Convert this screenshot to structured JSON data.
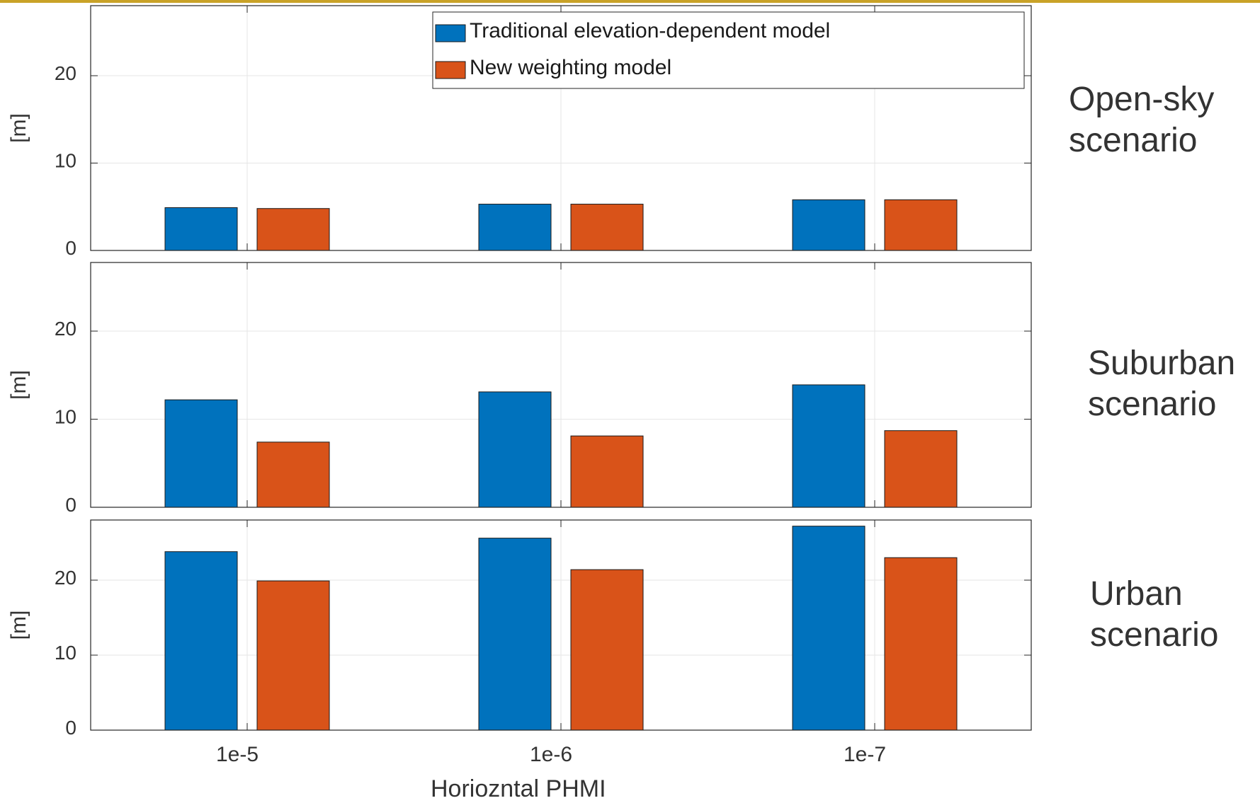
{
  "chart_data": [
    {
      "type": "bar",
      "panel": "open-sky",
      "scenario_label": [
        "Open-sky",
        "scenario"
      ],
      "categories": [
        "1e-5",
        "1e-6",
        "1e-7"
      ],
      "series": [
        {
          "name": "Traditional elevation-dependent model",
          "values": [
            4.9,
            5.3,
            5.8
          ],
          "color": "#0072bd"
        },
        {
          "name": "New weighting model",
          "values": [
            4.8,
            5.3,
            5.8
          ],
          "color": "#d95319"
        }
      ],
      "ylabel": "[m]",
      "yticks": [
        0,
        10,
        20
      ],
      "ylim": [
        0,
        28
      ],
      "grid": true,
      "legend": "top"
    },
    {
      "type": "bar",
      "panel": "suburban",
      "scenario_label": [
        "Suburban",
        "scenario"
      ],
      "categories": [
        "1e-5",
        "1e-6",
        "1e-7"
      ],
      "series": [
        {
          "name": "Traditional elevation-dependent model",
          "values": [
            12.2,
            13.1,
            13.9
          ],
          "color": "#0072bd"
        },
        {
          "name": "New weighting model",
          "values": [
            7.4,
            8.1,
            8.7
          ],
          "color": "#d95319"
        }
      ],
      "ylabel": "[m]",
      "yticks": [
        0,
        10,
        20
      ],
      "ylim": [
        0,
        28
      ],
      "grid": true
    },
    {
      "type": "bar",
      "panel": "urban",
      "scenario_label": [
        "Urban",
        "scenario"
      ],
      "categories": [
        "1e-5",
        "1e-6",
        "1e-7"
      ],
      "series": [
        {
          "name": "Traditional elevation-dependent model",
          "values": [
            23.8,
            25.6,
            27.2
          ],
          "color": "#0072bd"
        },
        {
          "name": "New weighting model",
          "values": [
            19.9,
            21.4,
            23.0
          ],
          "color": "#d95319"
        }
      ],
      "ylabel": "[m]",
      "yticks": [
        0,
        10,
        20
      ],
      "ylim": [
        0,
        28
      ],
      "grid": true,
      "xlabel": "Horioznt​al PHMI"
    }
  ],
  "legend": {
    "entries": [
      "Traditional elevation-dependent model",
      "New weighting model"
    ]
  },
  "xlabel": "Horiozntal PHMI",
  "colors": {
    "accent_rule": "#c9a227",
    "axis": "#262626",
    "grid": "#e6e6e6",
    "text": "#333333"
  }
}
